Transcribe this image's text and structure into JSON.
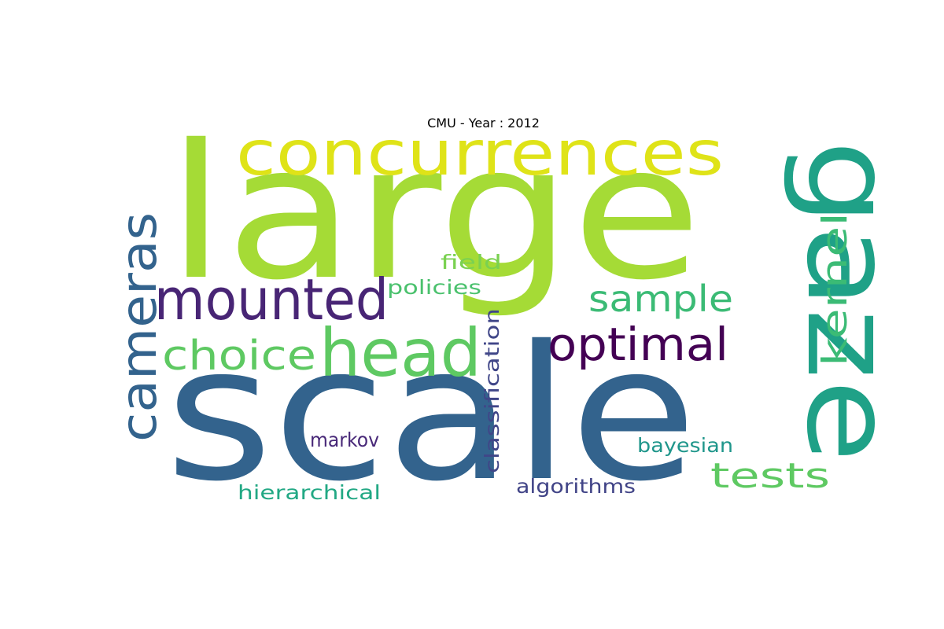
{
  "title": "CMU - Year : 2012",
  "words": [
    {
      "id": "large",
      "text": "large",
      "color": "#a5db36"
    },
    {
      "id": "scale",
      "text": "scale",
      "color": "#33638d"
    },
    {
      "id": "gaze",
      "text": "gaze",
      "color": "#1fa187"
    },
    {
      "id": "concurrences",
      "text": "concurrences",
      "color": "#dfe318"
    },
    {
      "id": "cameras",
      "text": "cameras",
      "color": "#33638d"
    },
    {
      "id": "mounted",
      "text": "mounted",
      "color": "#482575"
    },
    {
      "id": "head",
      "text": "head",
      "color": "#5ec962"
    },
    {
      "id": "optimal",
      "text": "optimal",
      "color": "#440154"
    },
    {
      "id": "choice",
      "text": "choice",
      "color": "#5ec962"
    },
    {
      "id": "sample",
      "text": "sample",
      "color": "#3bbb75"
    },
    {
      "id": "kernel",
      "text": "kernel",
      "color": "#3bbb75"
    },
    {
      "id": "tests",
      "text": "tests",
      "color": "#5ec962"
    },
    {
      "id": "field",
      "text": "field",
      "color": "#7ad151"
    },
    {
      "id": "policies",
      "text": "policies",
      "color": "#4ac16d"
    },
    {
      "id": "classification",
      "text": "classification",
      "color": "#404688"
    },
    {
      "id": "markov",
      "text": "markov",
      "color": "#482878"
    },
    {
      "id": "bayesian",
      "text": "bayesian",
      "color": "#1f968b"
    },
    {
      "id": "hierarchical",
      "text": "hierarchical",
      "color": "#22a884"
    },
    {
      "id": "algorithms",
      "text": "algorithms",
      "color": "#414487"
    }
  ]
}
